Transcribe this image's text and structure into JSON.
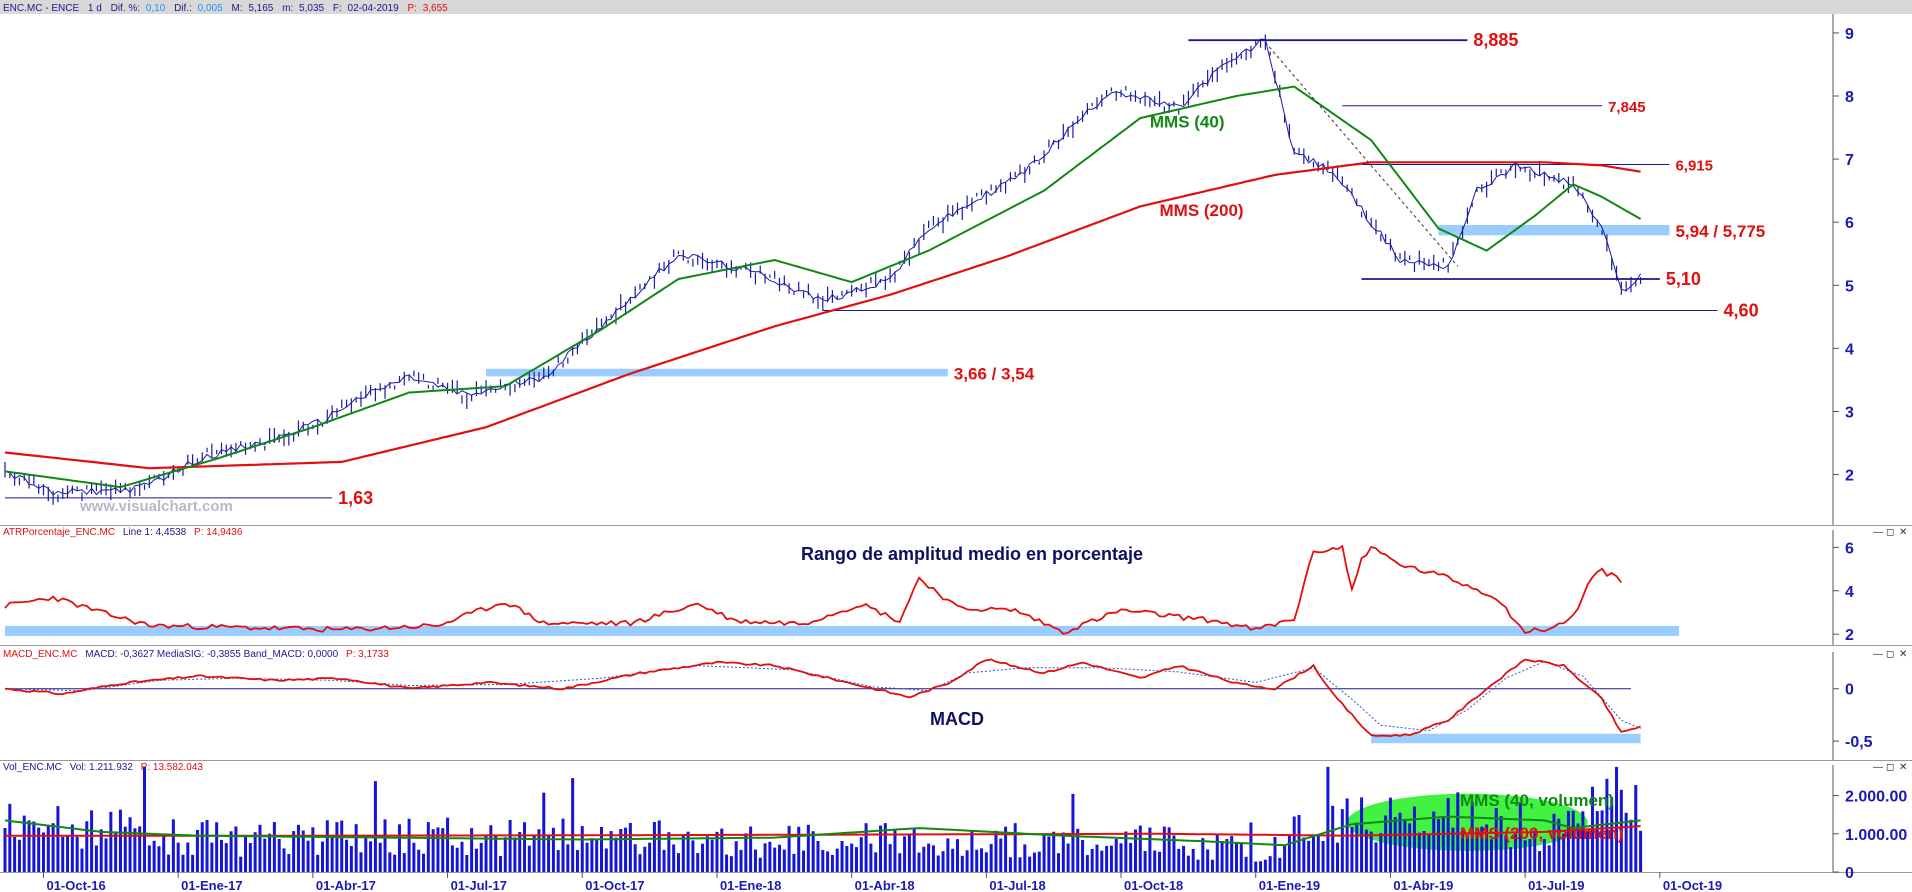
{
  "header": {
    "symbol": "ENC.MC - ENCE",
    "interval": "1 d",
    "dif_pct_label": "Dif. %:",
    "dif_pct_value": "0,10",
    "dif_label": "Dif.:",
    "dif_value": "0,005",
    "max_label": "M:",
    "max_value": "5,165",
    "min_label": "m:",
    "min_value": "5,035",
    "date_label": "F:",
    "date_value": "02-04-2019",
    "price_label": "P:",
    "price_value": "3,655"
  },
  "watermark": "www.visualchart.com",
  "colors": {
    "price": "#1a1aa6",
    "mms40": "#118811",
    "mms200": "#e01010",
    "level_line": "#1a1a8c",
    "band": "#99ccff",
    "label_red": "#e01010",
    "label_green": "#118811",
    "title_navy": "#101060",
    "volume": "#1515d8",
    "axis_text": "#1a1ab4",
    "header_bg": "#d8d8d8",
    "volume_highlight": "#22ee22"
  },
  "time_axis": {
    "labels": [
      "01-Oct-16",
      "01-Ene-17",
      "01-Abr-17",
      "01-Jul-17",
      "01-Oct-17",
      "01-Ene-18",
      "01-Abr-18",
      "01-Jul-18",
      "01-Oct-18",
      "01-Ene-19",
      "01-Abr-19",
      "01-Jul-19",
      "01-Oct-19"
    ]
  },
  "window_controls": {
    "minimize": "—",
    "restore": "◻",
    "close": "✕"
  },
  "chart_data": [
    {
      "type": "line",
      "panel": "price",
      "grid": false,
      "ylim": [
        1.2,
        9.3
      ],
      "y_ticks": [
        "2",
        "3",
        "4",
        "5",
        "6",
        "7",
        "8",
        "9"
      ],
      "price_path": [
        [
          0,
          2.05
        ],
        [
          5,
          1.7
        ],
        [
          14,
          1.78
        ],
        [
          21,
          2.3
        ],
        [
          27,
          2.5
        ],
        [
          33,
          2.85
        ],
        [
          36,
          3.15
        ],
        [
          42,
          3.55
        ],
        [
          48,
          3.25
        ],
        [
          56,
          3.55
        ],
        [
          63,
          4.5
        ],
        [
          70,
          5.5
        ],
        [
          79,
          5.15
        ],
        [
          85,
          4.75
        ],
        [
          92,
          5.1
        ],
        [
          96,
          5.9
        ],
        [
          106,
          6.8
        ],
        [
          115,
          8.1
        ],
        [
          122,
          7.8
        ],
        [
          126,
          8.4
        ],
        [
          131,
          8.9
        ],
        [
          134,
          7.1
        ],
        [
          138,
          6.8
        ],
        [
          145,
          5.4
        ],
        [
          150,
          5.3
        ],
        [
          153,
          6.5
        ],
        [
          157,
          6.9
        ],
        [
          163,
          6.6
        ],
        [
          166,
          5.9
        ],
        [
          168,
          4.9
        ],
        [
          170,
          5.15
        ]
      ],
      "mms40_path": [
        [
          0,
          2.05
        ],
        [
          12,
          1.8
        ],
        [
          22,
          2.25
        ],
        [
          32,
          2.75
        ],
        [
          42,
          3.3
        ],
        [
          52,
          3.4
        ],
        [
          62,
          4.3
        ],
        [
          70,
          5.1
        ],
        [
          80,
          5.4
        ],
        [
          88,
          5.05
        ],
        [
          96,
          5.55
        ],
        [
          108,
          6.5
        ],
        [
          118,
          7.65
        ],
        [
          128,
          8.0
        ],
        [
          134,
          8.15
        ],
        [
          142,
          7.3
        ],
        [
          149,
          5.9
        ],
        [
          154,
          5.55
        ],
        [
          159,
          6.1
        ],
        [
          163,
          6.6
        ],
        [
          166,
          6.4
        ],
        [
          170,
          6.05
        ]
      ],
      "mms200_path": [
        [
          0,
          2.35
        ],
        [
          15,
          2.1
        ],
        [
          35,
          2.2
        ],
        [
          50,
          2.75
        ],
        [
          65,
          3.6
        ],
        [
          80,
          4.35
        ],
        [
          92,
          4.85
        ],
        [
          104,
          5.45
        ],
        [
          118,
          6.25
        ],
        [
          132,
          6.75
        ],
        [
          142,
          6.95
        ],
        [
          160,
          6.95
        ],
        [
          166,
          6.9
        ],
        [
          170,
          6.8
        ]
      ],
      "dashed_trend": [
        [
          131,
          8.85
        ],
        [
          151,
          5.3
        ]
      ],
      "levels": [
        {
          "label": "8,885",
          "value": 8.885,
          "from": 123,
          "to": 152
        },
        {
          "label": "7,845",
          "value": 7.845,
          "from": 139,
          "to": 166
        },
        {
          "label": "6,915",
          "value": 6.915,
          "from": 141,
          "to": 173
        },
        {
          "label": "5,10",
          "value": 5.1,
          "from": 141,
          "to": 172
        },
        {
          "label": "4,60",
          "value": 4.6,
          "from": 85,
          "to": 178
        },
        {
          "label": "1,63",
          "value": 1.63,
          "from": 0,
          "to": 34
        }
      ],
      "bands": [
        {
          "label": "5,94 / 5,775",
          "low": 5.775,
          "high": 5.94,
          "from": 149,
          "to": 173
        },
        {
          "label": "3,66 / 3,54",
          "low": 3.54,
          "high": 3.66,
          "from": 50,
          "to": 98
        }
      ],
      "annotations": [
        {
          "text": "MMS (40)",
          "color": "green",
          "x": 119,
          "y": 7.5
        },
        {
          "text": "MMS (200)",
          "color": "red",
          "x": 120,
          "y": 6.1
        }
      ]
    },
    {
      "type": "line",
      "panel": "atr",
      "legend_name": "ATRPorcentaje_ENC.MC",
      "legend_values": "Line 1: 4,4538",
      "legend_p": "P: 14,9436",
      "title": "Rango de amplitud medio en porcentaje",
      "ylim": [
        1.5,
        6.8
      ],
      "y_ticks": [
        "2",
        "4",
        "6"
      ],
      "band": {
        "value": 2.15,
        "from": 0,
        "to": 174
      },
      "path": [
        [
          0,
          3.3
        ],
        [
          5,
          3.7
        ],
        [
          10,
          3.0
        ],
        [
          15,
          2.4
        ],
        [
          25,
          2.3
        ],
        [
          35,
          2.2
        ],
        [
          45,
          2.4
        ],
        [
          52,
          3.5
        ],
        [
          56,
          2.5
        ],
        [
          65,
          2.5
        ],
        [
          72,
          3.4
        ],
        [
          76,
          2.6
        ],
        [
          83,
          2.5
        ],
        [
          89,
          3.4
        ],
        [
          93,
          2.6
        ],
        [
          95,
          4.6
        ],
        [
          99,
          3.2
        ],
        [
          105,
          3.1
        ],
        [
          110,
          2.1
        ],
        [
          116,
          3.1
        ],
        [
          126,
          2.6
        ],
        [
          130,
          2.2
        ],
        [
          134,
          2.7
        ],
        [
          136,
          5.8
        ],
        [
          139,
          6.0
        ],
        [
          140,
          4.0
        ],
        [
          141,
          5.5
        ],
        [
          142,
          6.0
        ],
        [
          145,
          5.2
        ],
        [
          150,
          4.6
        ],
        [
          155,
          3.7
        ],
        [
          158,
          2.1
        ],
        [
          161,
          2.3
        ],
        [
          163,
          2.8
        ],
        [
          165,
          4.7
        ],
        [
          166,
          4.9
        ],
        [
          168,
          4.5
        ]
      ]
    },
    {
      "type": "line",
      "panel": "macd",
      "legend_name": "MACD_ENC.MC",
      "legend_values": "MACD: -0,3627  MediaSIG: -0,3855  Band_MACD: 0,0000",
      "legend_p": "P: 3,1733",
      "title": "MACD",
      "ylim": [
        -0.68,
        0.35
      ],
      "y_ticks": [
        "0",
        "-0,5"
      ],
      "zero_line": {
        "value": 0,
        "from": 0,
        "to": 169
      },
      "band": {
        "low": -0.52,
        "high": -0.43,
        "from": 142,
        "to": 170
      },
      "macd_path": [
        [
          0,
          0.0
        ],
        [
          6,
          -0.05
        ],
        [
          12,
          0.05
        ],
        [
          20,
          0.12
        ],
        [
          28,
          0.08
        ],
        [
          35,
          0.1
        ],
        [
          42,
          0.0
        ],
        [
          50,
          0.06
        ],
        [
          58,
          0.0
        ],
        [
          66,
          0.15
        ],
        [
          74,
          0.25
        ],
        [
          80,
          0.22
        ],
        [
          88,
          0.05
        ],
        [
          94,
          -0.08
        ],
        [
          98,
          0.05
        ],
        [
          102,
          0.28
        ],
        [
          108,
          0.15
        ],
        [
          112,
          0.25
        ],
        [
          118,
          0.1
        ],
        [
          122,
          0.22
        ],
        [
          128,
          0.05
        ],
        [
          132,
          0.0
        ],
        [
          136,
          0.22
        ],
        [
          138,
          -0.05
        ],
        [
          142,
          -0.45
        ],
        [
          146,
          -0.44
        ],
        [
          150,
          -0.3
        ],
        [
          154,
          0.0
        ],
        [
          158,
          0.28
        ],
        [
          162,
          0.22
        ],
        [
          166,
          -0.1
        ],
        [
          168,
          -0.42
        ],
        [
          170,
          -0.36
        ]
      ],
      "signal_path": [
        [
          0,
          0.0
        ],
        [
          8,
          -0.02
        ],
        [
          16,
          0.08
        ],
        [
          24,
          0.1
        ],
        [
          34,
          0.08
        ],
        [
          42,
          0.03
        ],
        [
          52,
          0.04
        ],
        [
          62,
          0.1
        ],
        [
          72,
          0.22
        ],
        [
          82,
          0.18
        ],
        [
          90,
          0.02
        ],
        [
          96,
          -0.02
        ],
        [
          100,
          0.15
        ],
        [
          106,
          0.2
        ],
        [
          114,
          0.2
        ],
        [
          122,
          0.16
        ],
        [
          130,
          0.06
        ],
        [
          136,
          0.2
        ],
        [
          140,
          -0.1
        ],
        [
          143,
          -0.35
        ],
        [
          148,
          -0.4
        ],
        [
          152,
          -0.2
        ],
        [
          156,
          0.1
        ],
        [
          160,
          0.26
        ],
        [
          164,
          0.12
        ],
        [
          168,
          -0.3
        ],
        [
          170,
          -0.38
        ]
      ]
    },
    {
      "type": "bar",
      "panel": "volume",
      "legend_name": "Vol_ENC.MC",
      "legend_values": "Vol: 1.211.932",
      "legend_p": "P: 13.582.043",
      "ylim": [
        0,
        2800000
      ],
      "y_ticks": [
        "2.000.00",
        "1.000.00",
        "0"
      ],
      "volume_profile": [
        [
          0,
          1500000
        ],
        [
          10,
          1400000
        ],
        [
          20,
          1100000
        ],
        [
          40,
          1150000
        ],
        [
          60,
          1150000
        ],
        [
          80,
          1000000
        ],
        [
          100,
          1050000
        ],
        [
          120,
          1000000
        ],
        [
          130,
          700000
        ],
        [
          136,
          1400000
        ],
        [
          145,
          1800000
        ],
        [
          155,
          1650000
        ],
        [
          163,
          1300000
        ],
        [
          166,
          2100000
        ],
        [
          170,
          2400000
        ]
      ],
      "mms40_path": [
        [
          0,
          1350000
        ],
        [
          10,
          1050000
        ],
        [
          20,
          950000
        ],
        [
          40,
          900000
        ],
        [
          60,
          850000
        ],
        [
          80,
          900000
        ],
        [
          95,
          1150000
        ],
        [
          110,
          950000
        ],
        [
          125,
          800000
        ],
        [
          133,
          700000
        ],
        [
          140,
          1250000
        ],
        [
          150,
          1450000
        ],
        [
          160,
          1350000
        ],
        [
          163,
          1150000
        ],
        [
          170,
          1350000
        ]
      ],
      "mms200_path": [
        [
          0,
          950000
        ],
        [
          30,
          950000
        ],
        [
          60,
          960000
        ],
        [
          90,
          980000
        ],
        [
          120,
          1000000
        ],
        [
          140,
          950000
        ],
        [
          160,
          1050000
        ],
        [
          170,
          1200000
        ]
      ],
      "highlight": {
        "center_x": 152,
        "center_y": 1300000,
        "half_width": 12.5,
        "half_height": 750000
      },
      "legend_items": [
        {
          "text": "MMS (40, volumen)",
          "color": "green"
        },
        {
          "text": "MMS (200, volumen)",
          "color": "red"
        }
      ]
    }
  ]
}
